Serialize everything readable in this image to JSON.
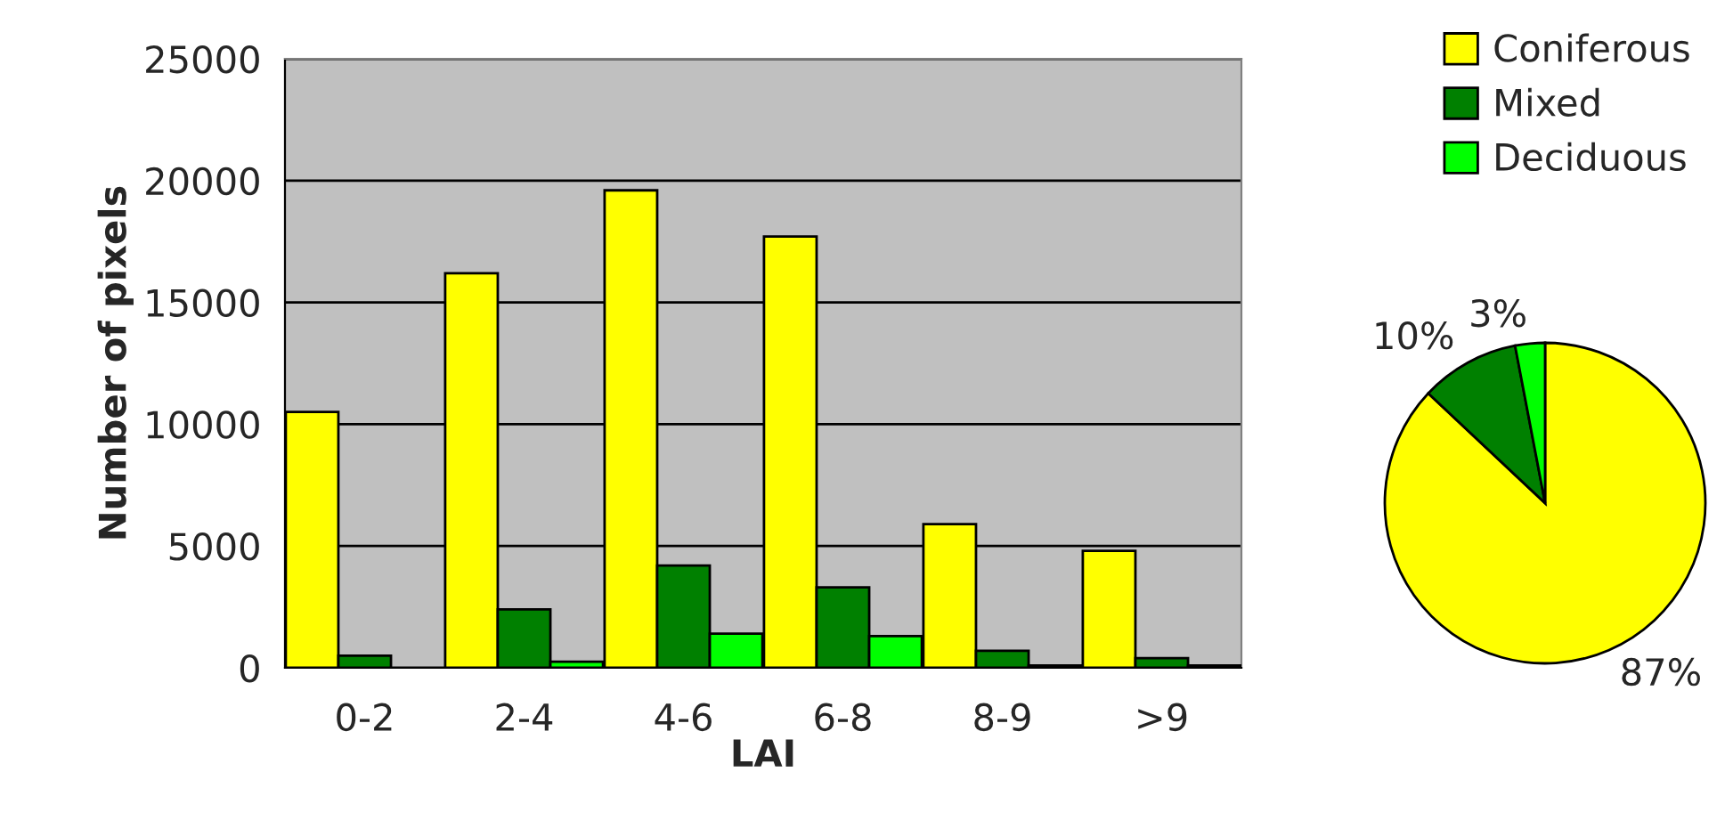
{
  "chart_data": [
    {
      "type": "bar",
      "xlabel": "LAI",
      "ylabel": "Number of pixels",
      "categories": [
        "0-2",
        "2-4",
        "4-6",
        "6-8",
        "8-9",
        ">9"
      ],
      "series": [
        {
          "name": "Coniferous",
          "color": "#ffff00",
          "values": [
            10500,
            16200,
            19600,
            17700,
            5900,
            4800
          ]
        },
        {
          "name": "Mixed",
          "color": "#008000",
          "values": [
            500,
            2400,
            4200,
            3300,
            700,
            400
          ]
        },
        {
          "name": "Deciduous",
          "color": "#00ff00",
          "values": [
            null,
            250,
            1400,
            1300,
            100,
            100
          ]
        }
      ],
      "ylim": [
        0,
        25000
      ],
      "yticks": [
        0,
        5000,
        10000,
        15000,
        20000,
        25000
      ],
      "grid": "y",
      "legend": "right"
    },
    {
      "type": "pie",
      "categories": [
        null,
        null,
        null
      ],
      "values": [
        87,
        10,
        3
      ],
      "colors": [
        "#ffff00",
        "#008000",
        "#00ff00"
      ],
      "value_labels": [
        "87%",
        "10%",
        "3%"
      ]
    }
  ]
}
